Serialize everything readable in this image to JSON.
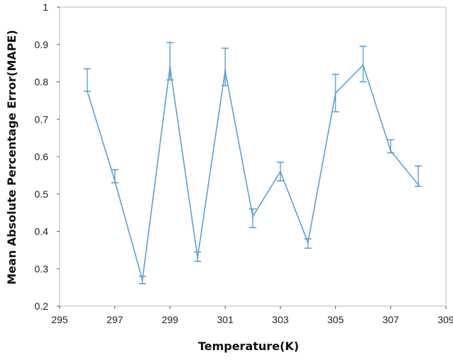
{
  "chart_data": {
    "type": "line",
    "xlabel": "Temperature(K)",
    "ylabel": "Mean Absolute Percentage Error(MAPE)",
    "xlim": [
      295,
      309
    ],
    "ylim": [
      0.2,
      1
    ],
    "xticks": [
      295,
      297,
      299,
      301,
      303,
      305,
      307,
      309
    ],
    "yticks": [
      0.2,
      0.3,
      0.4,
      0.5,
      0.6,
      0.7,
      0.8,
      0.9,
      1
    ],
    "grid": false,
    "legend": "none",
    "color": "#5aa2d6",
    "series": [
      {
        "x": [
          296,
          297,
          298,
          299,
          300,
          301,
          302,
          303,
          304,
          305,
          306,
          307,
          308
        ],
        "y": [
          0.775,
          0.535,
          0.27,
          0.84,
          0.33,
          0.83,
          0.44,
          0.56,
          0.37,
          0.77,
          0.845,
          0.615,
          0.525
        ],
        "err_low": [
          0.775,
          0.53,
          0.26,
          0.805,
          0.32,
          0.79,
          0.41,
          0.535,
          0.355,
          0.72,
          0.8,
          0.61,
          0.52
        ],
        "err_high": [
          0.835,
          0.565,
          0.28,
          0.905,
          0.345,
          0.89,
          0.46,
          0.585,
          0.38,
          0.82,
          0.895,
          0.645,
          0.575
        ]
      }
    ]
  }
}
